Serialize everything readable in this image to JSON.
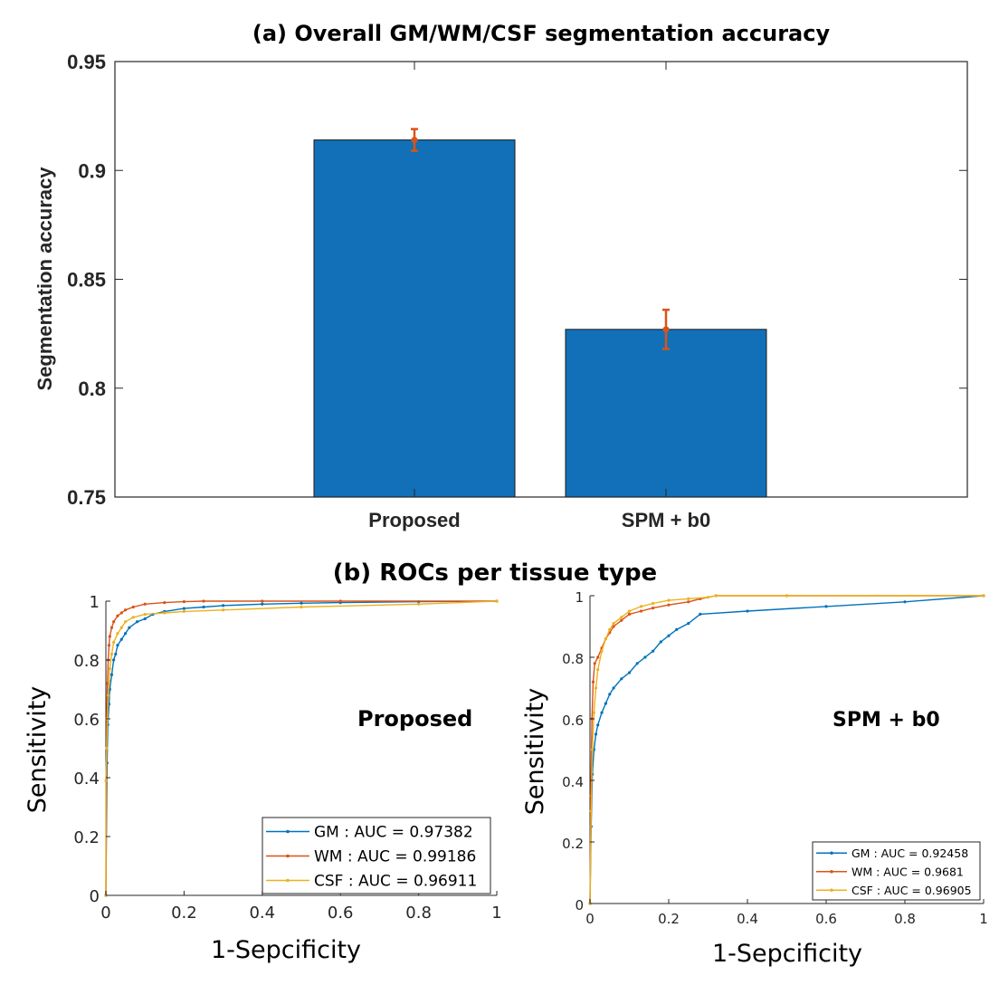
{
  "chart_data": [
    {
      "type": "bar",
      "title": "(a) Overall GM/WM/CSF segmentation accuracy",
      "xlabel": "",
      "ylabel": "Segmentation accuracy",
      "ylim": [
        0.75,
        0.95
      ],
      "yticks": [
        0.75,
        0.8,
        0.85,
        0.9,
        0.95
      ],
      "ytick_labels": [
        "0.75",
        "0.8",
        "0.85",
        "0.9",
        "0.95"
      ],
      "categories": [
        "Proposed",
        "SPM + b0"
      ],
      "values": [
        0.914,
        0.827
      ],
      "error_low": [
        0.909,
        0.818
      ],
      "error_high": [
        0.919,
        0.836
      ],
      "bar_color": "#1170b8",
      "error_color": "#d95319",
      "grid": false
    },
    {
      "type": "line",
      "section_title": "(b) ROCs per tissue type",
      "annotation": "Proposed",
      "xlabel": "1-Sepcificity",
      "ylabel": "Sensitivity",
      "xlim": [
        0,
        1
      ],
      "ylim": [
        0,
        1
      ],
      "xticks": [
        0,
        0.2,
        0.4,
        0.6,
        0.8,
        1
      ],
      "xtick_labels": [
        "0",
        "0.2",
        "0.4",
        "0.6",
        "0.8",
        "1"
      ],
      "yticks": [
        0,
        0.2,
        0.4,
        0.6,
        0.8,
        1
      ],
      "ytick_labels": [
        "0",
        "0.2",
        "0.4",
        "0.6",
        "0.8",
        "1"
      ],
      "legend_position": "bottom-right",
      "series": [
        {
          "name": "GM",
          "legend": "GM : AUC = 0.97382",
          "auc": 0.97382,
          "color": "#0072bd",
          "x": [
            0,
            0.003,
            0.005,
            0.008,
            0.01,
            0.015,
            0.02,
            0.025,
            0.03,
            0.04,
            0.05,
            0.06,
            0.08,
            0.1,
            0.12,
            0.15,
            0.2,
            0.25,
            0.3,
            0.4,
            0.5,
            0.6,
            0.8,
            1
          ],
          "y": [
            0,
            0.45,
            0.58,
            0.65,
            0.7,
            0.75,
            0.8,
            0.82,
            0.85,
            0.87,
            0.89,
            0.91,
            0.93,
            0.94,
            0.955,
            0.965,
            0.975,
            0.98,
            0.985,
            0.99,
            0.993,
            0.995,
            0.998,
            1
          ]
        },
        {
          "name": "WM",
          "legend": "WM : AUC = 0.99186",
          "auc": 0.99186,
          "color": "#d95319",
          "x": [
            0,
            0.002,
            0.004,
            0.006,
            0.008,
            0.01,
            0.015,
            0.02,
            0.03,
            0.04,
            0.05,
            0.07,
            0.1,
            0.15,
            0.2,
            0.25,
            0.4,
            0.6,
            1
          ],
          "y": [
            0,
            0.6,
            0.72,
            0.8,
            0.85,
            0.88,
            0.91,
            0.93,
            0.95,
            0.96,
            0.97,
            0.98,
            0.99,
            0.995,
            0.998,
            1,
            1,
            1,
            1
          ]
        },
        {
          "name": "CSF",
          "legend": "CSF : AUC = 0.96911",
          "auc": 0.96911,
          "color": "#edb120",
          "x": [
            0,
            0,
            0.002,
            0.004,
            0.006,
            0.008,
            0.01,
            0.015,
            0.02,
            0.03,
            0.04,
            0.05,
            0.07,
            0.1,
            0.15,
            0.2,
            0.3,
            0.5,
            0.8,
            1
          ],
          "y": [
            0,
            0.39,
            0.5,
            0.6,
            0.68,
            0.73,
            0.77,
            0.82,
            0.86,
            0.89,
            0.91,
            0.93,
            0.945,
            0.955,
            0.96,
            0.965,
            0.97,
            0.98,
            0.99,
            1
          ]
        }
      ]
    },
    {
      "type": "line",
      "annotation": "SPM + b0",
      "xlabel": "1-Sepcificity",
      "ylabel": "Sensitivity",
      "xlim": [
        0,
        1
      ],
      "ylim": [
        0,
        1
      ],
      "xticks": [
        0,
        0.2,
        0.4,
        0.6,
        0.8,
        1
      ],
      "xtick_labels": [
        "0",
        "0.2",
        "0.4",
        "0.6",
        "0.8",
        "1"
      ],
      "yticks": [
        0,
        0.2,
        0.4,
        0.6,
        0.8,
        1
      ],
      "ytick_labels": [
        "0",
        "0.2",
        "0.4",
        "0.6",
        "0.8",
        "1"
      ],
      "legend_position": "bottom-right",
      "series": [
        {
          "name": "GM",
          "legend": "GM : AUC = 0.92458",
          "auc": 0.92458,
          "color": "#0072bd",
          "x": [
            0,
            0.003,
            0.006,
            0.01,
            0.015,
            0.02,
            0.03,
            0.04,
            0.05,
            0.06,
            0.08,
            0.1,
            0.12,
            0.14,
            0.16,
            0.18,
            0.2,
            0.22,
            0.25,
            0.28,
            0.4,
            0.6,
            0.8,
            1
          ],
          "y": [
            0,
            0.25,
            0.42,
            0.5,
            0.55,
            0.58,
            0.62,
            0.65,
            0.68,
            0.7,
            0.73,
            0.75,
            0.78,
            0.8,
            0.82,
            0.85,
            0.87,
            0.89,
            0.91,
            0.94,
            0.95,
            0.965,
            0.98,
            1
          ]
        },
        {
          "name": "WM",
          "legend": "WM : AUC = 0.9681",
          "auc": 0.9681,
          "color": "#d95319",
          "x": [
            0,
            0.002,
            0.005,
            0.008,
            0.012,
            0.02,
            0.03,
            0.04,
            0.05,
            0.06,
            0.08,
            0.1,
            0.13,
            0.16,
            0.2,
            0.25,
            0.28,
            0.32,
            0.5,
            1
          ],
          "y": [
            0,
            0.35,
            0.6,
            0.72,
            0.78,
            0.8,
            0.83,
            0.86,
            0.88,
            0.9,
            0.92,
            0.94,
            0.95,
            0.96,
            0.97,
            0.98,
            0.99,
            1,
            1,
            1
          ]
        },
        {
          "name": "CSF",
          "legend": "CSF : AUC = 0.96905",
          "auc": 0.96905,
          "color": "#edb120",
          "x": [
            0,
            0.003,
            0.006,
            0.01,
            0.015,
            0.02,
            0.03,
            0.04,
            0.05,
            0.06,
            0.08,
            0.1,
            0.13,
            0.16,
            0.2,
            0.25,
            0.3,
            0.32,
            0.5,
            1
          ],
          "y": [
            0,
            0.3,
            0.5,
            0.62,
            0.7,
            0.76,
            0.82,
            0.86,
            0.89,
            0.91,
            0.93,
            0.95,
            0.965,
            0.975,
            0.985,
            0.99,
            0.995,
            1,
            1,
            1
          ]
        }
      ]
    }
  ]
}
